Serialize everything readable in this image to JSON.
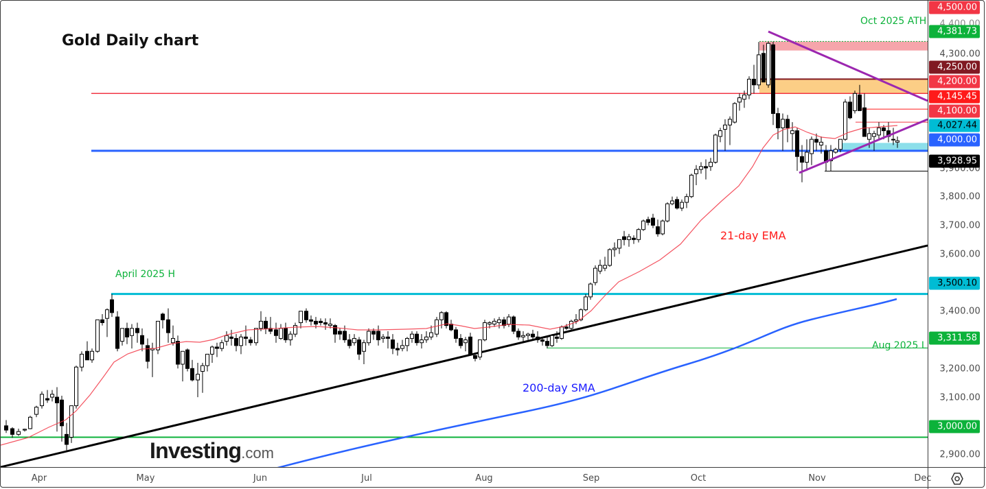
{
  "chart_data": {
    "type": "candlestick",
    "title": "Gold Daily chart",
    "instrument": "Gold",
    "timeframe": "Daily",
    "xlabel": "",
    "ylabel": "",
    "ylim": [
      2875,
      4520
    ],
    "grid": false,
    "x_ticks": [
      "Apr",
      "May",
      "Jun",
      "Jul",
      "Aug",
      "Sep",
      "Oct",
      "Nov",
      "Dec"
    ],
    "y_ticks": [
      2900,
      3000,
      3100,
      3200,
      3300,
      3400,
      3500,
      3600,
      3700,
      3800,
      3900,
      4000,
      4100,
      4200,
      4300,
      4400,
      4500
    ],
    "price_tags": [
      {
        "value": "4,500.00",
        "price": 4500,
        "color": "#f23645"
      },
      {
        "value": "4,381.73",
        "price": 4381.73,
        "color": "#0cb23a"
      },
      {
        "value": "4,250.00",
        "price": 4250,
        "color": "#801922"
      },
      {
        "value": "4,200.00",
        "price": 4200,
        "color": "#f23645"
      },
      {
        "value": "4,145.45",
        "price": 4145.45,
        "color": "#ff1a1a"
      },
      {
        "value": "4,100.00",
        "price": 4100,
        "color": "#f23645"
      },
      {
        "value": "4,027.44",
        "price": 4027.44,
        "color": "#00bcd4",
        "text_color": "#000000"
      },
      {
        "value": "4,000.00",
        "price": 4000,
        "color": "#2962ff"
      },
      {
        "value": "3,928.95",
        "price": 3928.95,
        "color": "#000000"
      },
      {
        "value": "3,500.10",
        "price": 3500.1,
        "color": "#00bcd4",
        "text_color": "#000000"
      },
      {
        "value": "3,311.58",
        "price": 3311.58,
        "color": "#0cb23a"
      },
      {
        "value": "3,000.00",
        "price": 3000,
        "color": "#0cb23a"
      }
    ],
    "horizontal_levels": [
      {
        "name": "Oct 2025 ATH",
        "price": 4381.73,
        "color": "#0cb23a",
        "style": "dotted"
      },
      {
        "name": "resistance-4200",
        "price": 4200,
        "color": "#f23645"
      },
      {
        "name": "support-4000",
        "price": 4000,
        "color": "#2962ff"
      },
      {
        "name": "April 2025 H",
        "price": 3500.1,
        "color": "#00bcd4"
      },
      {
        "name": "Aug 2025 L",
        "price": 3311.58,
        "color": "#0cb23a"
      },
      {
        "name": "support-3000",
        "price": 3000,
        "color": "#0cb23a"
      },
      {
        "name": "low-3928.95",
        "price": 3928.95,
        "color": "#000000"
      },
      {
        "name": "level-4145.45",
        "price": 4145.45,
        "color": "#ff1a1a"
      },
      {
        "name": "level-4100",
        "price": 4100,
        "color": "#f23645"
      }
    ],
    "zones": [
      {
        "name": "ath-zone",
        "from": 4350,
        "to": 4381.73,
        "color": "#f5a0a6"
      },
      {
        "name": "resistance-zone",
        "from": 4200,
        "to": 4250,
        "color": "#fccb7f"
      },
      {
        "name": "support-zone",
        "from": 4000,
        "to": 4027.44,
        "color": "#86dde9"
      }
    ],
    "series": [
      {
        "name": "21-day EMA",
        "color": "#f23645",
        "type": "line"
      },
      {
        "name": "200-day SMA",
        "color": "#2962ff",
        "type": "line"
      },
      {
        "name": "Trendline",
        "color": "#000000",
        "type": "line"
      },
      {
        "name": "Triangle",
        "color": "#9c27b0",
        "type": "line"
      }
    ],
    "annotations": [
      "Oct 2025 ATH",
      "April 2025 H",
      "Aug 2025 L",
      "21-day EMA",
      "200-day SMA"
    ],
    "last_price": 4027.44
  },
  "title": "Gold Daily chart",
  "labels": {
    "ath": "Oct 2025 ATH",
    "april_high": "April 2025 H",
    "aug_low": "Aug 2025 L",
    "ema": "21-day EMA",
    "sma": "200-day SMA"
  },
  "axis": {
    "ticks": [
      "4,400.00",
      "4,300.00",
      "3,900.00",
      "3,800.00",
      "3,700.00",
      "3,600.00",
      "3,400.00",
      "3,200.00",
      "3,100.00",
      "2,900.00"
    ],
    "months": [
      "Apr",
      "May",
      "Jun",
      "Jul",
      "Aug",
      "Sep",
      "Oct",
      "Nov",
      "Dec"
    ]
  },
  "logo": {
    "main": "Investing",
    "suffix": ".com"
  },
  "settings_icon": "gear-hexagon-icon"
}
